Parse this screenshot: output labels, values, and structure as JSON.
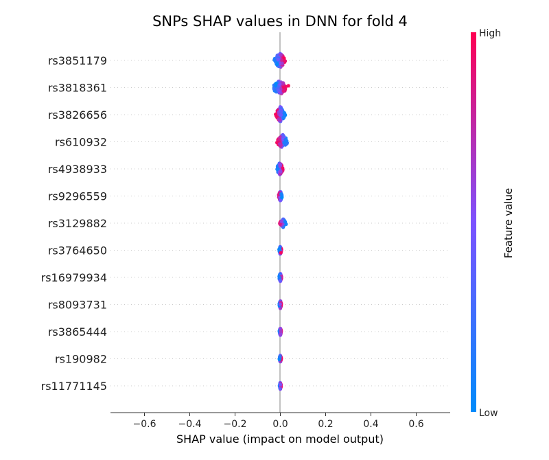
{
  "chart_data": {
    "type": "scatter",
    "title": "SNPs SHAP values in DNN for fold 4",
    "xlabel": "SHAP value (impact on model output)",
    "xlim": [
      -0.75,
      0.75
    ],
    "xticks": [
      -0.6,
      -0.4,
      -0.2,
      0.0,
      0.2,
      0.4,
      0.6
    ],
    "xtick_labels": [
      "−0.6",
      "−0.4",
      "−0.2",
      "0.0",
      "0.2",
      "0.4",
      "0.6"
    ],
    "features": [
      {
        "name": "rs3851179",
        "min": -0.035,
        "max": 0.03,
        "spread": 0.9,
        "low_side": "negative",
        "high_side": "positive"
      },
      {
        "name": "rs3818361",
        "min": -0.045,
        "max": 0.04,
        "spread": 0.85,
        "low_side": "negative",
        "high_side": "positive"
      },
      {
        "name": "rs3826656",
        "min": -0.025,
        "max": 0.025,
        "spread": 1.0,
        "low_side": "positive",
        "high_side": "negative"
      },
      {
        "name": "rs610932",
        "min": -0.02,
        "max": 0.04,
        "spread": 0.85,
        "low_side": "positive",
        "high_side": "negative"
      },
      {
        "name": "rs4938933",
        "min": -0.02,
        "max": 0.015,
        "spread": 0.7,
        "low_side": "negative",
        "high_side": "positive"
      },
      {
        "name": "rs9296559",
        "min": -0.01,
        "max": 0.01,
        "spread": 0.5,
        "low_side": "positive",
        "high_side": "negative"
      },
      {
        "name": "rs3129882",
        "min": -0.005,
        "max": 0.03,
        "spread": 0.35,
        "low_side": "positive",
        "high_side": "negative"
      },
      {
        "name": "rs3764650",
        "min": -0.006,
        "max": 0.006,
        "spread": 0.35,
        "low_side": "negative",
        "high_side": "positive"
      },
      {
        "name": "rs16979934",
        "min": -0.007,
        "max": 0.007,
        "spread": 0.35,
        "low_side": "negative",
        "high_side": "positive"
      },
      {
        "name": "rs8093731",
        "min": -0.006,
        "max": 0.006,
        "spread": 0.3,
        "low_side": "negative",
        "high_side": "positive"
      },
      {
        "name": "rs3865444",
        "min": -0.005,
        "max": 0.005,
        "spread": 0.3,
        "low_side": "negative",
        "high_side": "positive"
      },
      {
        "name": "rs190982",
        "min": -0.005,
        "max": 0.005,
        "spread": 0.25,
        "low_side": "negative",
        "high_side": "positive"
      },
      {
        "name": "rs11771145",
        "min": -0.004,
        "max": 0.004,
        "spread": 0.25,
        "low_side": "negative",
        "high_side": "positive"
      }
    ],
    "colorbar": {
      "title": "Feature value",
      "high_label": "High",
      "low_label": "Low",
      "low_color": "#008bfb",
      "mid_color": "#7c52ff",
      "high_color": "#ff0052"
    },
    "grid": false,
    "zero_line": true
  }
}
